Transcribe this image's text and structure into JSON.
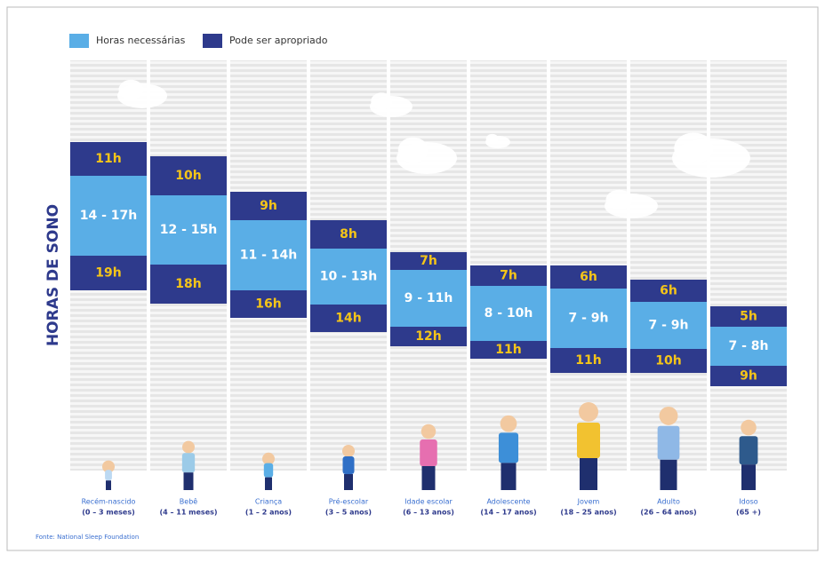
{
  "legend": {
    "needed": "Horas necessárias",
    "possible": "Pode ser apropriado"
  },
  "y_label": "HORAS DE SONO",
  "groups": [
    {
      "top": "11h",
      "range": "14 - 17h",
      "bottom": "19h",
      "label": "Recém-nascido",
      "age": "(0 – 3 meses)"
    },
    {
      "top": "10h",
      "range": "12 - 15h",
      "bottom": "18h",
      "label": "Bebê",
      "age": "(4 – 11 meses)"
    },
    {
      "top": "9h",
      "range": "11 - 14h",
      "bottom": "16h",
      "label": "Criança",
      "age": "(1 – 2 anos)"
    },
    {
      "top": "8h",
      "range": "10 - 13h",
      "bottom": "14h",
      "label": "Pré-escolar",
      "age": "(3 – 5 anos)"
    },
    {
      "top": "7h",
      "range": "9 - 11h",
      "bottom": "12h",
      "label": "Idade escolar",
      "age": "(6 – 13 anos)"
    },
    {
      "top": "7h",
      "range": "8 - 10h",
      "bottom": "11h",
      "label": "Adolescente",
      "age": "(14 – 17 anos)"
    },
    {
      "top": "6h",
      "range": "7 - 9h",
      "bottom": "11h",
      "label": "Jovem",
      "age": "(18 – 25 anos)"
    },
    {
      "top": "6h",
      "range": "7 - 9h",
      "bottom": "10h",
      "label": "Adulto",
      "age": "(26 – 64 anos)"
    },
    {
      "top": "5h",
      "range": "7 - 8h",
      "bottom": "9h",
      "label": "Idoso",
      "age": "(65 +)"
    }
  ],
  "source": "Fonte: National Sleep Foundation"
}
